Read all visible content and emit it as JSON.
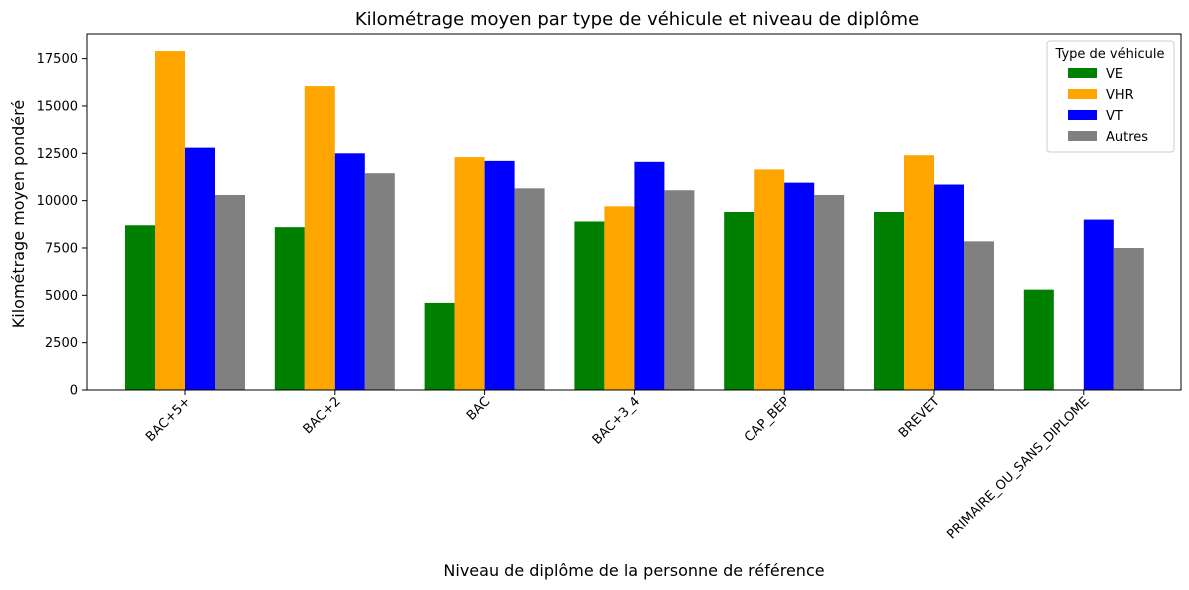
{
  "chart_data": {
    "type": "bar",
    "title": "Kilométrage moyen par type de véhicule et niveau de diplôme",
    "xlabel": "Niveau de diplôme de la personne de référence",
    "ylabel": "Kilométrage moyen pondéré",
    "categories": [
      "BAC+5+",
      "BAC+2",
      "BAC",
      "BAC+3_4",
      "CAP_BEP",
      "BREVET",
      "PRIMAIRE_OU_SANS_DIPLOME"
    ],
    "series": [
      {
        "name": "VE",
        "color": "#008000",
        "values": [
          8700,
          8600,
          4600,
          8900,
          9400,
          9400,
          5300
        ]
      },
      {
        "name": "VHR",
        "color": "#FFA500",
        "values": [
          17900,
          16050,
          12300,
          9700,
          11650,
          12400,
          null
        ]
      },
      {
        "name": "VT",
        "color": "#0000FF",
        "values": [
          12800,
          12500,
          12100,
          12050,
          10950,
          10850,
          9000
        ]
      },
      {
        "name": "Autres",
        "color": "#808080",
        "values": [
          10300,
          11450,
          10650,
          10550,
          10300,
          7850,
          7500
        ]
      }
    ],
    "ylim": [
      0,
      18800
    ],
    "yticks": [
      0,
      2500,
      5000,
      7500,
      10000,
      12500,
      15000,
      17500
    ],
    "legend": {
      "title": "Type de véhicule",
      "position": "top-right"
    },
    "grid": false
  }
}
